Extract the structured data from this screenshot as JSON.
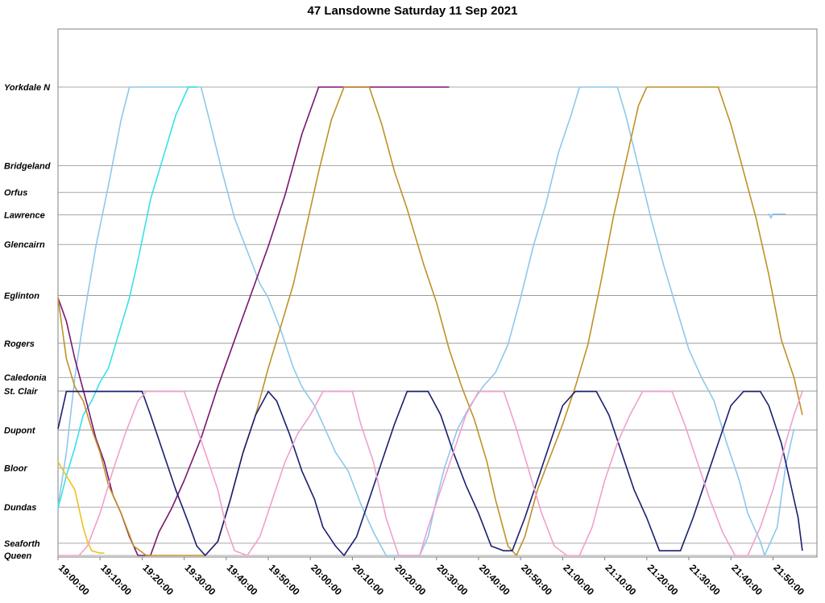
{
  "chart_data": {
    "type": "line",
    "title": "47 Lansdowne Saturday 11 Sep 2021",
    "xlabel": "",
    "ylabel": "",
    "x_range": [
      "19:00:00",
      "21:55:00"
    ],
    "x_ticks": [
      "19:00:00",
      "19:10:00",
      "19:20:00",
      "19:30:00",
      "19:40:00",
      "19:50:00",
      "20:00:00",
      "20:10:00",
      "20:20:00",
      "20:30:00",
      "20:40:00",
      "20:50:00",
      "21:00:00",
      "21:10:00",
      "21:20:00",
      "21:30:00",
      "21:40:00",
      "21:50:00"
    ],
    "stops": [
      {
        "name": "Yorkdale N",
        "pos": 100
      },
      {
        "name": "Bridgeland",
        "pos": 83.2
      },
      {
        "name": "Orfus",
        "pos": 77.5
      },
      {
        "name": "Lawrence",
        "pos": 72.7
      },
      {
        "name": "Glencairn",
        "pos": 66.4
      },
      {
        "name": "Eglinton",
        "pos": 55.5
      },
      {
        "name": "Rogers",
        "pos": 45.3
      },
      {
        "name": "Caledonia",
        "pos": 38
      },
      {
        "name": "St. Clair",
        "pos": 35.1
      },
      {
        "name": "Dupont",
        "pos": 26.8
      },
      {
        "name": "Bloor",
        "pos": 18.7
      },
      {
        "name": "Dundas",
        "pos": 10.3
      },
      {
        "name": "Seaforth",
        "pos": 2.6
      },
      {
        "name": "Queen",
        "pos": 0
      }
    ],
    "grid": "horizontal at stops",
    "legend": "none",
    "series": [
      {
        "color": "#8ec8ec",
        "points": [
          [
            "19:00:00",
            10.5
          ],
          [
            "19:02:00",
            22
          ],
          [
            "19:04:00",
            38
          ],
          [
            "19:06:00",
            50
          ],
          [
            "19:09:00",
            66
          ],
          [
            "19:12:00",
            79
          ],
          [
            "19:15:00",
            93
          ],
          [
            "19:17:00",
            100
          ],
          [
            "19:34:00",
            100
          ],
          [
            "19:36:00",
            93
          ],
          [
            "19:39:00",
            82
          ],
          [
            "19:42:00",
            72
          ],
          [
            "19:45:00",
            65
          ],
          [
            "19:48:00",
            58
          ],
          [
            "19:50:00",
            55
          ],
          [
            "19:53:00",
            48
          ],
          [
            "19:56:00",
            40
          ],
          [
            "19:58:00",
            36
          ],
          [
            "20:01:00",
            32
          ],
          [
            "20:03:00",
            28
          ],
          [
            "20:06:00",
            22
          ],
          [
            "20:09:00",
            18
          ],
          [
            "20:12:00",
            11
          ],
          [
            "20:15:00",
            5
          ],
          [
            "20:18:00",
            0
          ],
          [
            "20:26:00",
            0
          ],
          [
            "20:28:00",
            4
          ],
          [
            "20:30:00",
            12
          ],
          [
            "20:32:00",
            19
          ],
          [
            "20:35:00",
            27
          ],
          [
            "20:38:00",
            32
          ],
          [
            "20:41:00",
            36
          ],
          [
            "20:44:00",
            39
          ],
          [
            "20:47:00",
            45
          ],
          [
            "20:50:00",
            55
          ],
          [
            "20:53:00",
            66
          ],
          [
            "20:56:00",
            75
          ],
          [
            "20:59:00",
            86
          ],
          [
            "21:02:00",
            94
          ],
          [
            "21:04:00",
            100
          ],
          [
            "21:13:00",
            100
          ],
          [
            "21:15:00",
            94
          ],
          [
            "21:18:00",
            83
          ],
          [
            "21:21:00",
            72
          ],
          [
            "21:24:00",
            62
          ],
          [
            "21:27:00",
            53
          ],
          [
            "21:30:00",
            44
          ],
          [
            "21:33:00",
            38
          ],
          [
            "21:36:00",
            33
          ],
          [
            "21:39:00",
            24
          ],
          [
            "21:42:00",
            16
          ],
          [
            "21:44:00",
            9
          ],
          [
            "21:47:00",
            3
          ],
          [
            "21:48:00",
            0
          ],
          [
            "21:51:00",
            6
          ],
          [
            "21:53:00",
            19
          ],
          [
            "21:55:00",
            27
          ]
        ]
      },
      {
        "color": "#8ec8ec",
        "points": [
          [
            "21:49:00",
            73
          ],
          [
            "21:49:30",
            72
          ],
          [
            "21:50:00",
            72.9
          ],
          [
            "21:53:00",
            72.9
          ]
        ]
      },
      {
        "color": "#38e0e8",
        "points": [
          [
            "19:00:00",
            10
          ],
          [
            "19:02:00",
            17
          ],
          [
            "19:04:00",
            23
          ],
          [
            "19:06:00",
            30
          ],
          [
            "19:08:00",
            33
          ],
          [
            "19:10:00",
            37
          ],
          [
            "19:12:00",
            40
          ],
          [
            "19:14:00",
            46
          ],
          [
            "19:17:00",
            55
          ],
          [
            "19:19:00",
            63
          ],
          [
            "19:22:00",
            76
          ],
          [
            "19:25:00",
            85
          ],
          [
            "19:28:00",
            94
          ],
          [
            "19:31:00",
            100
          ],
          [
            "19:33:00",
            100
          ]
        ]
      },
      {
        "color": "#7a1470",
        "points": [
          [
            "19:00:00",
            55
          ],
          [
            "19:02:00",
            50
          ],
          [
            "19:04:00",
            42
          ],
          [
            "19:07:00",
            32
          ],
          [
            "19:09:00",
            25
          ],
          [
            "19:11:00",
            20
          ],
          [
            "19:13:00",
            13
          ],
          [
            "19:15:00",
            9
          ],
          [
            "19:17:00",
            4
          ],
          [
            "19:19:00",
            0
          ],
          [
            "19:22:00",
            0
          ],
          [
            "19:24:00",
            5
          ],
          [
            "19:27:00",
            10
          ],
          [
            "19:30:00",
            16
          ],
          [
            "19:34:00",
            25
          ],
          [
            "19:38:00",
            36
          ],
          [
            "19:42:00",
            46
          ],
          [
            "19:46:00",
            56
          ],
          [
            "19:50:00",
            66
          ],
          [
            "19:54:00",
            77
          ],
          [
            "19:58:00",
            90
          ],
          [
            "20:02:00",
            100
          ],
          [
            "20:33:00",
            100
          ]
        ]
      },
      {
        "color": "#bf9128",
        "points": [
          [
            "19:00:00",
            55
          ],
          [
            "19:02:00",
            42
          ],
          [
            "19:04:00",
            36
          ],
          [
            "19:06:00",
            33
          ],
          [
            "19:08:00",
            27
          ],
          [
            "19:10:00",
            22
          ],
          [
            "19:12:00",
            15
          ],
          [
            "19:15:00",
            9
          ],
          [
            "19:18:00",
            2
          ],
          [
            "19:21:00",
            0
          ],
          [
            "19:35:00",
            0
          ],
          [
            "19:38:00",
            3
          ],
          [
            "19:41:00",
            12
          ],
          [
            "19:44:00",
            22
          ],
          [
            "19:47:00",
            30
          ],
          [
            "19:50:00",
            40
          ],
          [
            "19:53:00",
            49
          ],
          [
            "19:56:00",
            58
          ],
          [
            "19:59:00",
            70
          ],
          [
            "20:02:00",
            82
          ],
          [
            "20:05:00",
            93
          ],
          [
            "20:08:00",
            100
          ],
          [
            "20:14:00",
            100
          ],
          [
            "20:17:00",
            92
          ],
          [
            "20:20:00",
            82
          ],
          [
            "20:23:00",
            74
          ],
          [
            "20:27:00",
            62
          ],
          [
            "20:30:00",
            54
          ],
          [
            "20:33:00",
            44
          ],
          [
            "20:36:00",
            36
          ],
          [
            "20:39:00",
            29
          ],
          [
            "20:42:00",
            20
          ],
          [
            "20:44:00",
            12
          ],
          [
            "20:47:00",
            2
          ],
          [
            "20:49:00",
            0
          ],
          [
            "20:51:00",
            4
          ],
          [
            "20:54:00",
            14
          ],
          [
            "20:57:00",
            21
          ],
          [
            "21:00:00",
            28
          ],
          [
            "21:03:00",
            36
          ],
          [
            "21:06:00",
            45
          ],
          [
            "21:09:00",
            58
          ],
          [
            "21:12:00",
            72
          ],
          [
            "21:15:00",
            84
          ],
          [
            "21:18:00",
            96
          ],
          [
            "21:20:00",
            100
          ],
          [
            "21:37:00",
            100
          ],
          [
            "21:40:00",
            92
          ],
          [
            "21:43:00",
            82
          ],
          [
            "21:46:00",
            72
          ],
          [
            "21:49:00",
            60
          ],
          [
            "21:52:00",
            46
          ],
          [
            "21:55:00",
            38
          ],
          [
            "21:57:00",
            30
          ]
        ]
      },
      {
        "color": "#1a1e70",
        "points": [
          [
            "19:00:00",
            27
          ],
          [
            "19:02:00",
            35
          ],
          [
            "19:10:00",
            35
          ],
          [
            "19:20:00",
            35
          ],
          [
            "19:22:00",
            30
          ],
          [
            "19:25:00",
            22
          ],
          [
            "19:28:00",
            14
          ],
          [
            "19:31:00",
            7
          ],
          [
            "19:33:00",
            2
          ],
          [
            "19:35:00",
            0
          ],
          [
            "19:38:00",
            3
          ],
          [
            "19:41:00",
            12
          ],
          [
            "19:44:00",
            22
          ],
          [
            "19:47:00",
            30
          ],
          [
            "19:50:00",
            35
          ],
          [
            "19:52:00",
            33
          ],
          [
            "19:55:00",
            26
          ],
          [
            "19:58:00",
            18
          ],
          [
            "20:01:00",
            12
          ],
          [
            "20:03:00",
            6
          ],
          [
            "20:06:00",
            2
          ],
          [
            "20:08:00",
            0
          ],
          [
            "20:11:00",
            4
          ],
          [
            "20:14:00",
            12
          ],
          [
            "20:17:00",
            20
          ],
          [
            "20:20:00",
            28
          ],
          [
            "20:23:00",
            35
          ],
          [
            "20:28:00",
            35
          ],
          [
            "20:31:00",
            30
          ],
          [
            "20:34:00",
            22
          ],
          [
            "20:37:00",
            15
          ],
          [
            "20:40:00",
            9
          ],
          [
            "20:43:00",
            2
          ],
          [
            "20:46:00",
            1
          ],
          [
            "20:48:00",
            1
          ],
          [
            "20:51:00",
            8
          ],
          [
            "20:54:00",
            16
          ],
          [
            "20:57:00",
            24
          ],
          [
            "21:00:00",
            32
          ],
          [
            "21:03:00",
            35
          ],
          [
            "21:08:00",
            35
          ],
          [
            "21:11:00",
            30
          ],
          [
            "21:14:00",
            22
          ],
          [
            "21:17:00",
            14
          ],
          [
            "21:20:00",
            8
          ],
          [
            "21:23:00",
            1
          ],
          [
            "21:28:00",
            1
          ],
          [
            "21:31:00",
            8
          ],
          [
            "21:34:00",
            16
          ],
          [
            "21:37:00",
            24
          ],
          [
            "21:40:00",
            32
          ],
          [
            "21:43:00",
            35
          ],
          [
            "21:47:00",
            35
          ],
          [
            "21:49:00",
            32
          ],
          [
            "21:52:00",
            24
          ],
          [
            "21:54:00",
            16
          ],
          [
            "21:56:00",
            8
          ],
          [
            "21:57:00",
            1
          ]
        ]
      },
      {
        "color": "#f0a0cc",
        "points": [
          [
            "19:00:00",
            0
          ],
          [
            "19:05:00",
            0
          ],
          [
            "19:07:00",
            2
          ],
          [
            "19:10:00",
            9
          ],
          [
            "19:13:00",
            18
          ],
          [
            "19:16:00",
            26
          ],
          [
            "19:19:00",
            33
          ],
          [
            "19:21:00",
            35
          ],
          [
            "19:30:00",
            35
          ],
          [
            "19:32:00",
            30
          ],
          [
            "19:35:00",
            22
          ],
          [
            "19:38:00",
            14
          ],
          [
            "19:40:00",
            6
          ],
          [
            "19:42:00",
            1
          ],
          [
            "19:45:00",
            0
          ],
          [
            "19:48:00",
            4
          ],
          [
            "19:51:00",
            12
          ],
          [
            "19:54:00",
            20
          ],
          [
            "19:57:00",
            26
          ],
          [
            "20:00:00",
            30
          ],
          [
            "20:03:00",
            35
          ],
          [
            "20:10:00",
            35
          ],
          [
            "20:12:00",
            28
          ],
          [
            "20:15:00",
            20
          ],
          [
            "20:18:00",
            8
          ],
          [
            "20:21:00",
            0
          ],
          [
            "20:26:00",
            0
          ],
          [
            "20:28:00",
            6
          ],
          [
            "20:31:00",
            14
          ],
          [
            "20:34:00",
            22
          ],
          [
            "20:37:00",
            30
          ],
          [
            "20:40:00",
            35
          ],
          [
            "20:46:00",
            35
          ],
          [
            "20:49:00",
            27
          ],
          [
            "20:52:00",
            18
          ],
          [
            "20:55:00",
            9
          ],
          [
            "20:58:00",
            2
          ],
          [
            "21:01:00",
            0
          ],
          [
            "21:04:00",
            0
          ],
          [
            "21:07:00",
            6
          ],
          [
            "21:10:00",
            16
          ],
          [
            "21:13:00",
            24
          ],
          [
            "21:16:00",
            30
          ],
          [
            "21:19:00",
            35
          ],
          [
            "21:26:00",
            35
          ],
          [
            "21:29:00",
            28
          ],
          [
            "21:32:00",
            20
          ],
          [
            "21:35:00",
            12
          ],
          [
            "21:38:00",
            5
          ],
          [
            "21:41:00",
            0
          ],
          [
            "21:44:00",
            0
          ],
          [
            "21:47:00",
            6
          ],
          [
            "21:50:00",
            14
          ],
          [
            "21:53:00",
            24
          ],
          [
            "21:55:00",
            30
          ],
          [
            "21:57:00",
            35
          ]
        ]
      },
      {
        "color": "#f0c020",
        "points": [
          [
            "19:00:00",
            20
          ],
          [
            "19:02:00",
            17
          ],
          [
            "19:04:00",
            14
          ],
          [
            "19:05:00",
            10
          ],
          [
            "19:06:00",
            6
          ],
          [
            "19:07:00",
            3
          ],
          [
            "19:08:00",
            1
          ],
          [
            "19:10:00",
            0.5
          ],
          [
            "19:11:00",
            0.5
          ]
        ]
      }
    ]
  }
}
